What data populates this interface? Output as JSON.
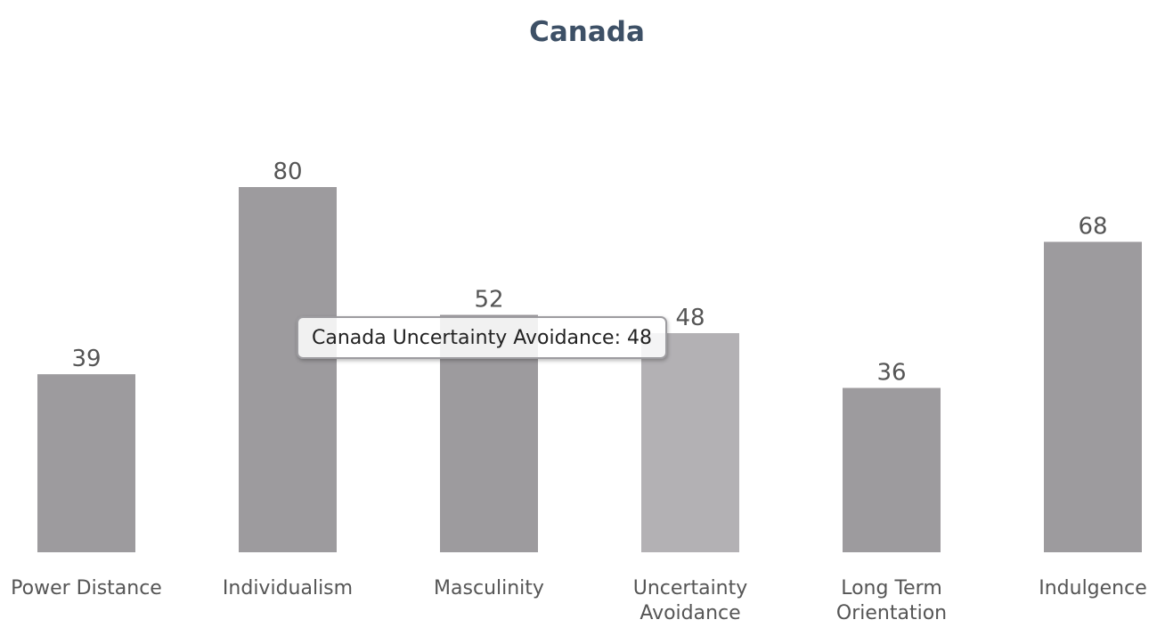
{
  "chart_data": {
    "type": "bar",
    "title": "Canada",
    "categories": [
      "Power Distance",
      "Individualism",
      "Masculinity",
      "Uncertainty Avoidance",
      "Long Term Orientation",
      "Indulgence"
    ],
    "category_lines": [
      [
        "Power Distance"
      ],
      [
        "Individualism"
      ],
      [
        "Masculinity"
      ],
      [
        "Uncertainty",
        "Avoidance"
      ],
      [
        "Long Term",
        "Orientation"
      ],
      [
        "Indulgence"
      ]
    ],
    "values": [
      39,
      80,
      52,
      48,
      36,
      68
    ],
    "data_labels": [
      "39",
      "80",
      "52",
      "48",
      "36",
      "68"
    ],
    "xlabel": "",
    "ylabel": "",
    "ylim": [
      0,
      100
    ],
    "grid": false,
    "legend": "none",
    "highlighted_index": 3
  },
  "tooltip": {
    "text": "Canada Uncertainty Avoidance: 48"
  },
  "colors": {
    "bar": "#9d9b9e",
    "bar_highlight": "#b3b1b4",
    "title": "#3d5066",
    "label": "#555555",
    "tooltip_border": "#9d9ca0"
  }
}
